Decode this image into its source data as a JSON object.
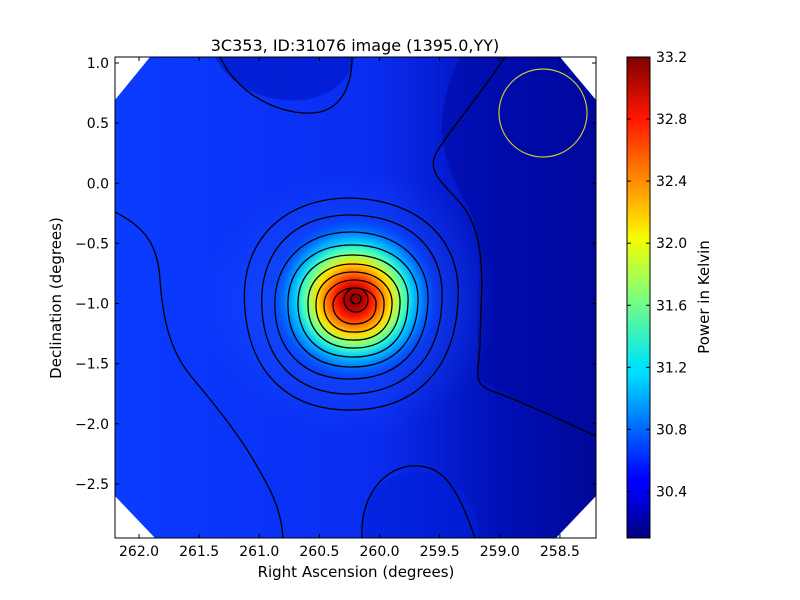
{
  "chart_data": {
    "type": "heatmap",
    "title": "3C353, ID:31076 image (1395.0,YY)",
    "xlabel": "Right Ascension (degrees)",
    "ylabel": "Declination (degrees)",
    "xlim": [
      262.2,
      258.2
    ],
    "ylim": [
      -2.95,
      1.05
    ],
    "x_ticks": [
      262.0,
      261.5,
      261.0,
      260.5,
      260.0,
      259.5,
      259.0,
      258.5
    ],
    "x_tick_labels": [
      "262.0",
      "261.5",
      "261.0",
      "260.5",
      "260.0",
      "259.5",
      "259.0",
      "258.5"
    ],
    "y_ticks": [
      1.0,
      0.5,
      0.0,
      -0.5,
      -1.0,
      -1.5,
      -2.0,
      -2.5
    ],
    "y_tick_labels": [
      "1.0",
      "0.5",
      "0.0",
      "−0.5",
      "−1.0",
      "−1.5",
      "−2.0",
      "−2.5"
    ],
    "colormap": "jet",
    "colorbar": {
      "label": "Power in Kelvin",
      "range": [
        30.1,
        33.2
      ],
      "ticks": [
        30.4,
        30.8,
        31.2,
        31.6,
        32.0,
        32.4,
        32.8,
        33.2
      ],
      "tick_labels": [
        "30.4",
        "30.8",
        "31.2",
        "31.6",
        "32.0",
        "32.4",
        "32.8",
        "33.2"
      ]
    },
    "peak": {
      "ra": 260.15,
      "dec": -1.0,
      "value": 33.2
    },
    "beam_circle": {
      "ra": 258.55,
      "dec": 0.57,
      "radius_deg": 0.37,
      "color": "#c8c832"
    },
    "contours": "black",
    "grid": false
  }
}
